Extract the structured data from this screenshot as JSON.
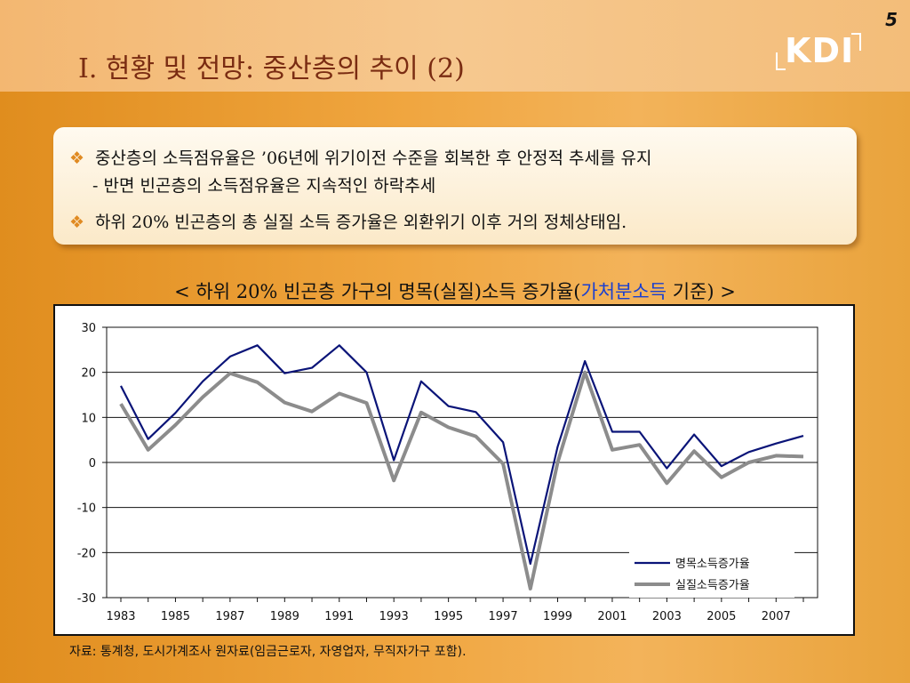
{
  "page_number": "5",
  "title": "I. 현황 및 전망: 중산층의 추이 (2)",
  "logo_text": "KDI",
  "bullets": [
    {
      "text": "중산층의 소득점유율은 ’06년에 위기이전 수준을 회복한 후 안정적 추세를 유지",
      "sub": "- 반면 빈곤층의 소득점유율은 지속적인 하락추세"
    },
    {
      "text": "하위 20% 빈곤층의 총 실질 소득 증가율은 외환위기 이후 거의 정체상태임."
    }
  ],
  "chart_title": {
    "before": "< 하위 20% 빈곤층 가구의 명목(실질)소득 증가율(",
    "highlight": "가처분소득",
    "after": " 기준) >",
    "highlight_color": "#1a3fd0"
  },
  "source_note": "자료: 통계청, 도시가계조사 원자료(임금근로자, 자영업자, 무직자가구 포함).",
  "chart_data": {
    "type": "line",
    "x": [
      1983,
      1984,
      1985,
      1986,
      1987,
      1988,
      1989,
      1990,
      1991,
      1992,
      1993,
      1994,
      1995,
      1996,
      1997,
      1998,
      1999,
      2000,
      2001,
      2002,
      2003,
      2004,
      2005,
      2006,
      2007,
      2008
    ],
    "x_tick_labels": [
      "1983",
      "1985",
      "1987",
      "1989",
      "1991",
      "1993",
      "1995",
      "1997",
      "1999",
      "2001",
      "2003",
      "2005",
      "2007"
    ],
    "y_ticks": [
      "30",
      "20",
      "10",
      "0",
      "-10",
      "-20",
      "-30"
    ],
    "ylim": [
      -30,
      30
    ],
    "grid": true,
    "legend_position": "bottom-right",
    "series": [
      {
        "name": "명목소득증가율",
        "color": "#0a1478",
        "values": [
          17,
          5.2,
          11,
          18,
          23.5,
          26,
          19.8,
          21,
          26,
          20,
          0.5,
          18,
          12.5,
          11.2,
          4.5,
          -22.5,
          3.5,
          22.5,
          6.8,
          6.8,
          -1.3,
          6.2,
          -0.8,
          2.3,
          4.2,
          5.9
        ]
      },
      {
        "name": "실질소득증가율",
        "color": "#8c8c8c",
        "values": [
          13,
          2.8,
          8.3,
          14.5,
          19.8,
          17.8,
          13.3,
          11.3,
          15.3,
          13.2,
          -4,
          11.1,
          7.8,
          5.8,
          -0.3,
          -28,
          0,
          20,
          2.8,
          3.9,
          -4.6,
          2.5,
          -3.3,
          0,
          1.5,
          1.3
        ]
      }
    ]
  }
}
